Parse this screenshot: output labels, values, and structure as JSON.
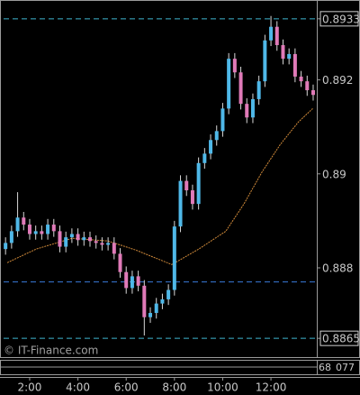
{
  "chart_data": {
    "type": "candlestick",
    "watermark": "© IT-Finance.com",
    "x": [
      1.0,
      1.25,
      1.5,
      1.75,
      2.0,
      2.25,
      2.5,
      2.75,
      3.0,
      3.25,
      3.5,
      3.75,
      4.0,
      4.25,
      4.5,
      4.75,
      5.0,
      5.25,
      5.5,
      5.75,
      6.0,
      6.25,
      6.5,
      6.75,
      7.0,
      7.25,
      7.5,
      7.75,
      8.0,
      8.25,
      8.5,
      8.75,
      9.0,
      9.25,
      9.5,
      9.75,
      10.0,
      10.25,
      10.5,
      10.75,
      11.0,
      11.25,
      11.5,
      11.75,
      12.0,
      12.25,
      12.5,
      12.75,
      13.0,
      13.25,
      13.5,
      13.75
    ],
    "open": [
      0.8884,
      0.88853,
      0.88878,
      0.88907,
      0.88892,
      0.88872,
      0.88878,
      0.88872,
      0.88892,
      0.88878,
      0.88845,
      0.88865,
      0.88872,
      0.88859,
      0.88865,
      0.88857,
      0.88853,
      0.88849,
      0.88853,
      0.8883,
      0.88791,
      0.88757,
      0.88782,
      0.88762,
      0.88695,
      0.88704,
      0.88724,
      0.88733,
      0.88753,
      0.88888,
      0.88985,
      0.88965,
      0.88936,
      0.89023,
      0.89043,
      0.89072,
      0.89091,
      0.89139,
      0.89245,
      0.89216,
      0.89149,
      0.8912,
      0.89159,
      0.89197,
      0.89284,
      0.89313,
      0.89274,
      0.89245,
      0.89255,
      0.89207,
      0.89197,
      0.89178
    ],
    "high": [
      0.88865,
      0.8889,
      0.88961,
      0.88919,
      0.88904,
      0.8889,
      0.8889,
      0.88904,
      0.88904,
      0.8889,
      0.88877,
      0.88884,
      0.88884,
      0.88877,
      0.88877,
      0.88869,
      0.88865,
      0.88865,
      0.88865,
      0.88842,
      0.88803,
      0.88794,
      0.88794,
      0.88774,
      0.88716,
      0.88736,
      0.88745,
      0.88765,
      0.889,
      0.88997,
      0.88997,
      0.88977,
      0.89035,
      0.89055,
      0.89084,
      0.89103,
      0.89151,
      0.89257,
      0.89257,
      0.89228,
      0.89161,
      0.89171,
      0.89209,
      0.89296,
      0.89336,
      0.89325,
      0.89286,
      0.89267,
      0.89267,
      0.89219,
      0.89209,
      0.8919
    ],
    "low": [
      0.88828,
      0.88841,
      0.88866,
      0.8888,
      0.8886,
      0.8886,
      0.8886,
      0.8886,
      0.88866,
      0.88833,
      0.88833,
      0.88853,
      0.88847,
      0.88847,
      0.88845,
      0.88841,
      0.88837,
      0.88837,
      0.88818,
      0.88779,
      0.88745,
      0.88745,
      0.8875,
      0.88656,
      0.88683,
      0.88692,
      0.88712,
      0.88721,
      0.88741,
      0.88876,
      0.88953,
      0.88924,
      0.88924,
      0.89011,
      0.89031,
      0.8906,
      0.89079,
      0.89127,
      0.89204,
      0.89137,
      0.89108,
      0.89108,
      0.89147,
      0.89185,
      0.89272,
      0.89262,
      0.89233,
      0.89233,
      0.89195,
      0.89185,
      0.89166,
      0.89156
    ],
    "close": [
      0.88853,
      0.88878,
      0.88907,
      0.88892,
      0.88872,
      0.88878,
      0.88872,
      0.88892,
      0.88878,
      0.88845,
      0.88865,
      0.88872,
      0.88859,
      0.88865,
      0.88857,
      0.88853,
      0.88849,
      0.88853,
      0.8883,
      0.88791,
      0.88757,
      0.88782,
      0.88762,
      0.88695,
      0.88704,
      0.88724,
      0.88733,
      0.88753,
      0.88888,
      0.88985,
      0.88965,
      0.88936,
      0.89023,
      0.89043,
      0.89072,
      0.89091,
      0.89139,
      0.89245,
      0.89216,
      0.89149,
      0.8912,
      0.89159,
      0.89197,
      0.89284,
      0.89313,
      0.89274,
      0.89245,
      0.89255,
      0.89207,
      0.89197,
      0.89178,
      0.89168
    ],
    "up_color": "#4fb8e8",
    "down_color": "#e07ab8",
    "wick_color": "#d8d8d8",
    "moving_average": {
      "color": "#d08a3a",
      "x": [
        1.07,
        2.27,
        3.77,
        5.26,
        6.39,
        7.89,
        9.01,
        10.13,
        10.88,
        11.63,
        12.38,
        13.13,
        13.73
      ],
      "values": [
        0.88811,
        0.8884,
        0.88863,
        0.88857,
        0.88838,
        0.88807,
        0.8884,
        0.88878,
        0.88936,
        0.89004,
        0.89062,
        0.8911,
        0.89139
      ]
    },
    "levels": [
      {
        "value": 0.8933,
        "color": "#3fb6d0"
      },
      {
        "value": 0.8865,
        "color": "#3fb6d0"
      },
      {
        "value": 0.8877,
        "color": "#3a7ad8"
      }
    ],
    "xlim": [
      0.77,
      13.9
    ],
    "ylim": [
      0.8861,
      0.8937
    ],
    "xticks": [
      {
        "value": 2,
        "label": "2:00"
      },
      {
        "value": 4,
        "label": "4:00"
      },
      {
        "value": 6,
        "label": "6:00"
      },
      {
        "value": 8,
        "label": "8:00"
      },
      {
        "value": 10,
        "label": "10:00"
      },
      {
        "value": 12,
        "label": "12:00"
      }
    ],
    "yticks": [
      0.8933,
      0.892,
      0.89,
      0.888,
      0.8865
    ],
    "indicator_labels": [
      "68",
      "077"
    ]
  }
}
